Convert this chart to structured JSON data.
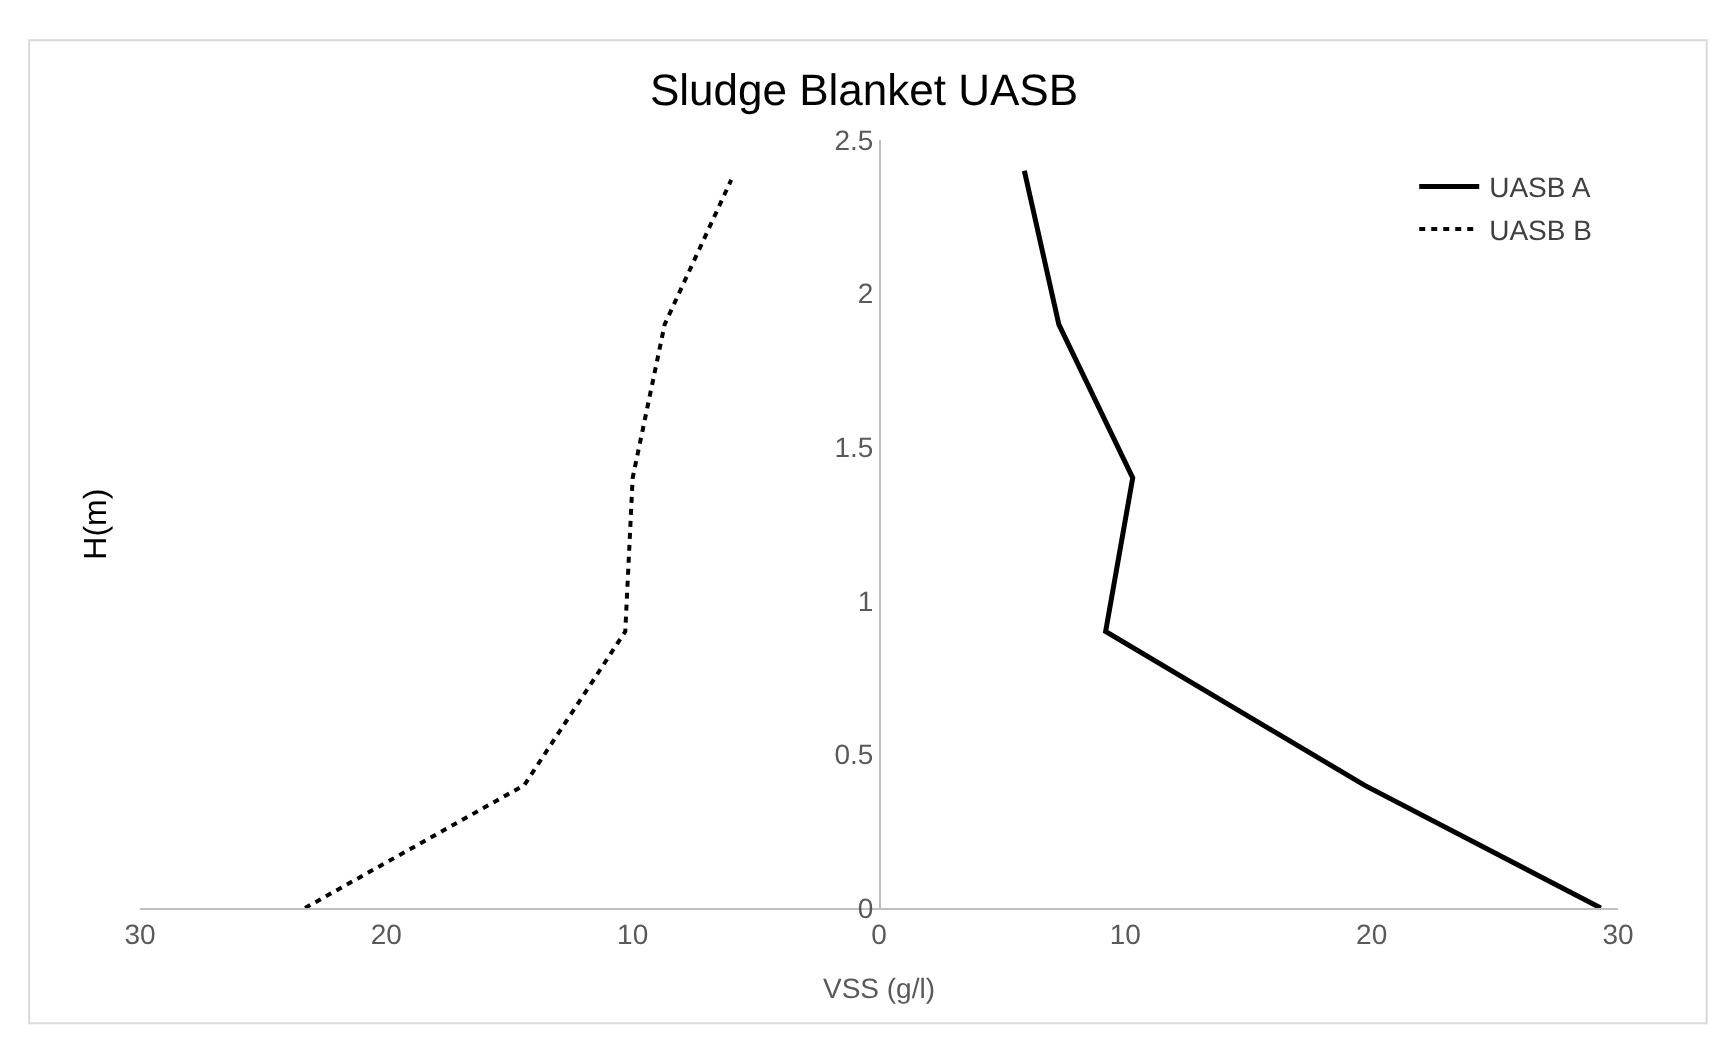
{
  "chart_data": {
    "type": "line",
    "title": "Sludge Blanket UASB",
    "xlabel": "VSS (g/l)",
    "ylabel": "H(m)",
    "series": [
      {
        "name": "UASB A",
        "color": "#000000",
        "line_style": "solid",
        "x": [
          29.3,
          19.7,
          9.2,
          10.3,
          7.3,
          5.9
        ],
        "values": [
          0,
          0.4,
          0.9,
          1.4,
          1.9,
          2.4
        ]
      },
      {
        "name": "UASB B",
        "color": "#000000",
        "line_style": "dotted",
        "x": [
          -23.3,
          -14.4,
          -10.3,
          -10.0,
          -8.7,
          -6.0
        ],
        "values": [
          0,
          0.4,
          0.9,
          1.4,
          1.9,
          2.37
        ]
      }
    ],
    "xlim": [
      -30,
      30
    ],
    "xticks": [
      {
        "value": -30,
        "label": "30"
      },
      {
        "value": -20,
        "label": "20"
      },
      {
        "value": -10,
        "label": "10"
      },
      0,
      10,
      20,
      30
    ],
    "ylim": [
      0,
      2.5
    ],
    "yticks": [
      0,
      0.5,
      1,
      1.5,
      2,
      2.5
    ],
    "legend": "top right",
    "marker": "none"
  }
}
